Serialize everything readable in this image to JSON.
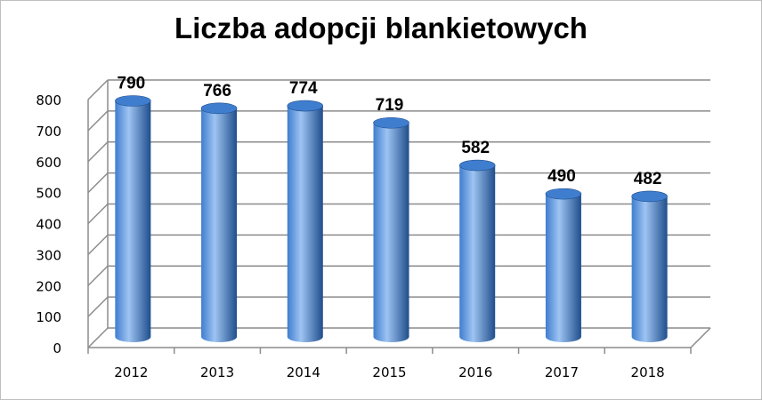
{
  "chart_data": {
    "type": "bar",
    "style": "3d-cylinder",
    "title": "Liczba adopcji blankietowych",
    "categories": [
      "2012",
      "2013",
      "2014",
      "2015",
      "2016",
      "2017",
      "2018"
    ],
    "values": [
      790,
      766,
      774,
      719,
      582,
      490,
      482
    ],
    "data_labels": [
      "790",
      "766",
      "774",
      "719",
      "582",
      "490",
      "482"
    ],
    "ylim": [
      0,
      800
    ],
    "yticks": [
      0,
      100,
      200,
      300,
      400,
      500,
      600,
      700,
      800
    ],
    "grid": true,
    "legend": "none",
    "colors": {
      "bar": "#3f7dcf",
      "bar_highlight": "#9ec4f2",
      "bar_shadow": "#1f4e8c",
      "grid": "#8c8c8c"
    }
  }
}
